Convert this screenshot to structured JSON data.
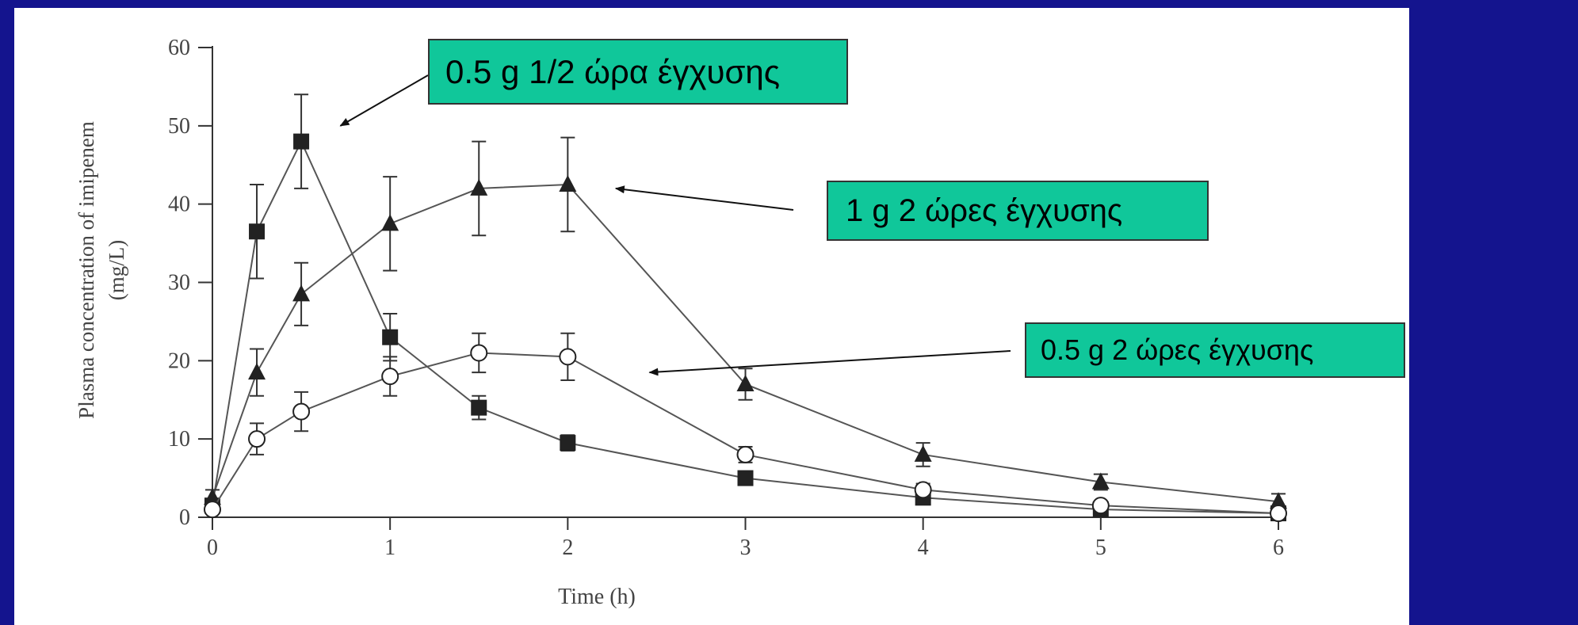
{
  "slide": {
    "background_color": "#14148e",
    "panel_color": "#ffffff",
    "callout_color": "#10c79a"
  },
  "chart_data": {
    "type": "line",
    "title": "",
    "xlabel": "Time (h)",
    "ylabel_line1": "Plasma concentration of imipenem",
    "ylabel_line2": "(mg/L)",
    "xlim": [
      0,
      6
    ],
    "ylim": [
      0,
      60
    ],
    "xticks": [
      0,
      1,
      2,
      3,
      4,
      5,
      6
    ],
    "yticks": [
      0,
      10,
      20,
      30,
      40,
      50,
      60
    ],
    "grid": false,
    "series": [
      {
        "marker": "square-filled",
        "x": [
          0,
          0.25,
          0.5,
          1,
          1.5,
          2,
          3,
          4,
          5,
          6
        ],
        "y": [
          1.5,
          36.5,
          48,
          23,
          14,
          9.5,
          5,
          2.5,
          1,
          0.5
        ],
        "err": [
          0.8,
          6,
          6,
          3,
          1.5,
          1,
          0.8,
          0.8,
          0.5,
          0.3
        ]
      },
      {
        "marker": "triangle-filled",
        "x": [
          0,
          0.25,
          0.5,
          1,
          1.5,
          2,
          3,
          4,
          5,
          6
        ],
        "y": [
          2.5,
          18.5,
          28.5,
          37.5,
          42,
          42.5,
          17,
          8,
          4.5,
          2
        ],
        "err": [
          1,
          3,
          4,
          6,
          6,
          6,
          2,
          1.5,
          1,
          1
        ]
      },
      {
        "marker": "circle-open",
        "x": [
          0,
          0.25,
          0.5,
          1,
          1.5,
          2,
          3,
          4,
          5,
          6
        ],
        "y": [
          1,
          10,
          13.5,
          18,
          21,
          20.5,
          8,
          3.5,
          1.5,
          0.5
        ],
        "err": [
          0.5,
          2,
          2.5,
          2.5,
          2.5,
          3,
          1,
          0.8,
          0.5,
          0.3
        ]
      }
    ],
    "annotations": [
      {
        "text": "0.5 g  1/2 ώρα έγχυσης",
        "series_index": 0,
        "arrow_to": [
          0.72,
          50
        ]
      },
      {
        "text": "1 g  2 ώρες έγχυσης",
        "series_index": 1,
        "arrow_to": [
          2.27,
          42
        ]
      },
      {
        "text": "0.5 g  2 ώρες έγχυσης",
        "series_index": 2,
        "arrow_to": [
          2.46,
          18.5
        ]
      }
    ]
  }
}
